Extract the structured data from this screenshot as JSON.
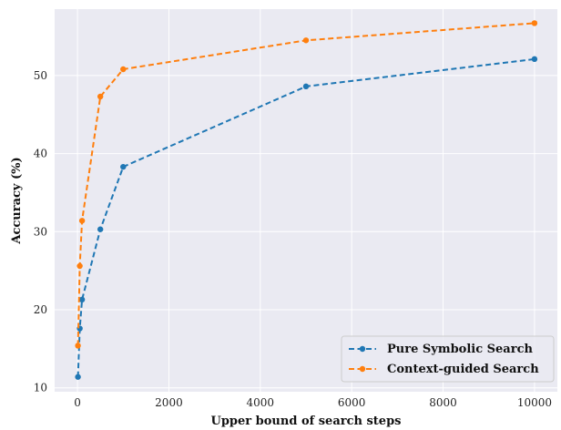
{
  "chart_data": {
    "type": "line",
    "title": "",
    "xlabel": "Upper bound of search steps",
    "ylabel": "Accuracy (%)",
    "xlim": [
      -500,
      10500
    ],
    "ylim": [
      9.5,
      58.5
    ],
    "xticks": [
      0,
      2000,
      4000,
      6000,
      8000,
      10000
    ],
    "yticks": [
      10,
      20,
      30,
      40,
      50
    ],
    "grid": true,
    "legend": "bottom-right",
    "background_color": "#eaeaf2",
    "series": [
      {
        "name": "Pure Symbolic Search",
        "color": "#1f77b4",
        "linestyle": "dashed",
        "marker": "circle",
        "x": [
          10,
          50,
          100,
          500,
          1000,
          5000,
          10000
        ],
        "y": [
          11.4,
          17.6,
          21.3,
          30.3,
          38.3,
          48.6,
          52.1
        ]
      },
      {
        "name": "Context-guided Search",
        "color": "#ff7f0e",
        "linestyle": "dashed",
        "marker": "circle",
        "x": [
          10,
          50,
          100,
          500,
          1000,
          5000,
          10000
        ],
        "y": [
          15.4,
          25.6,
          31.4,
          47.3,
          50.8,
          54.5,
          56.7
        ]
      }
    ]
  }
}
